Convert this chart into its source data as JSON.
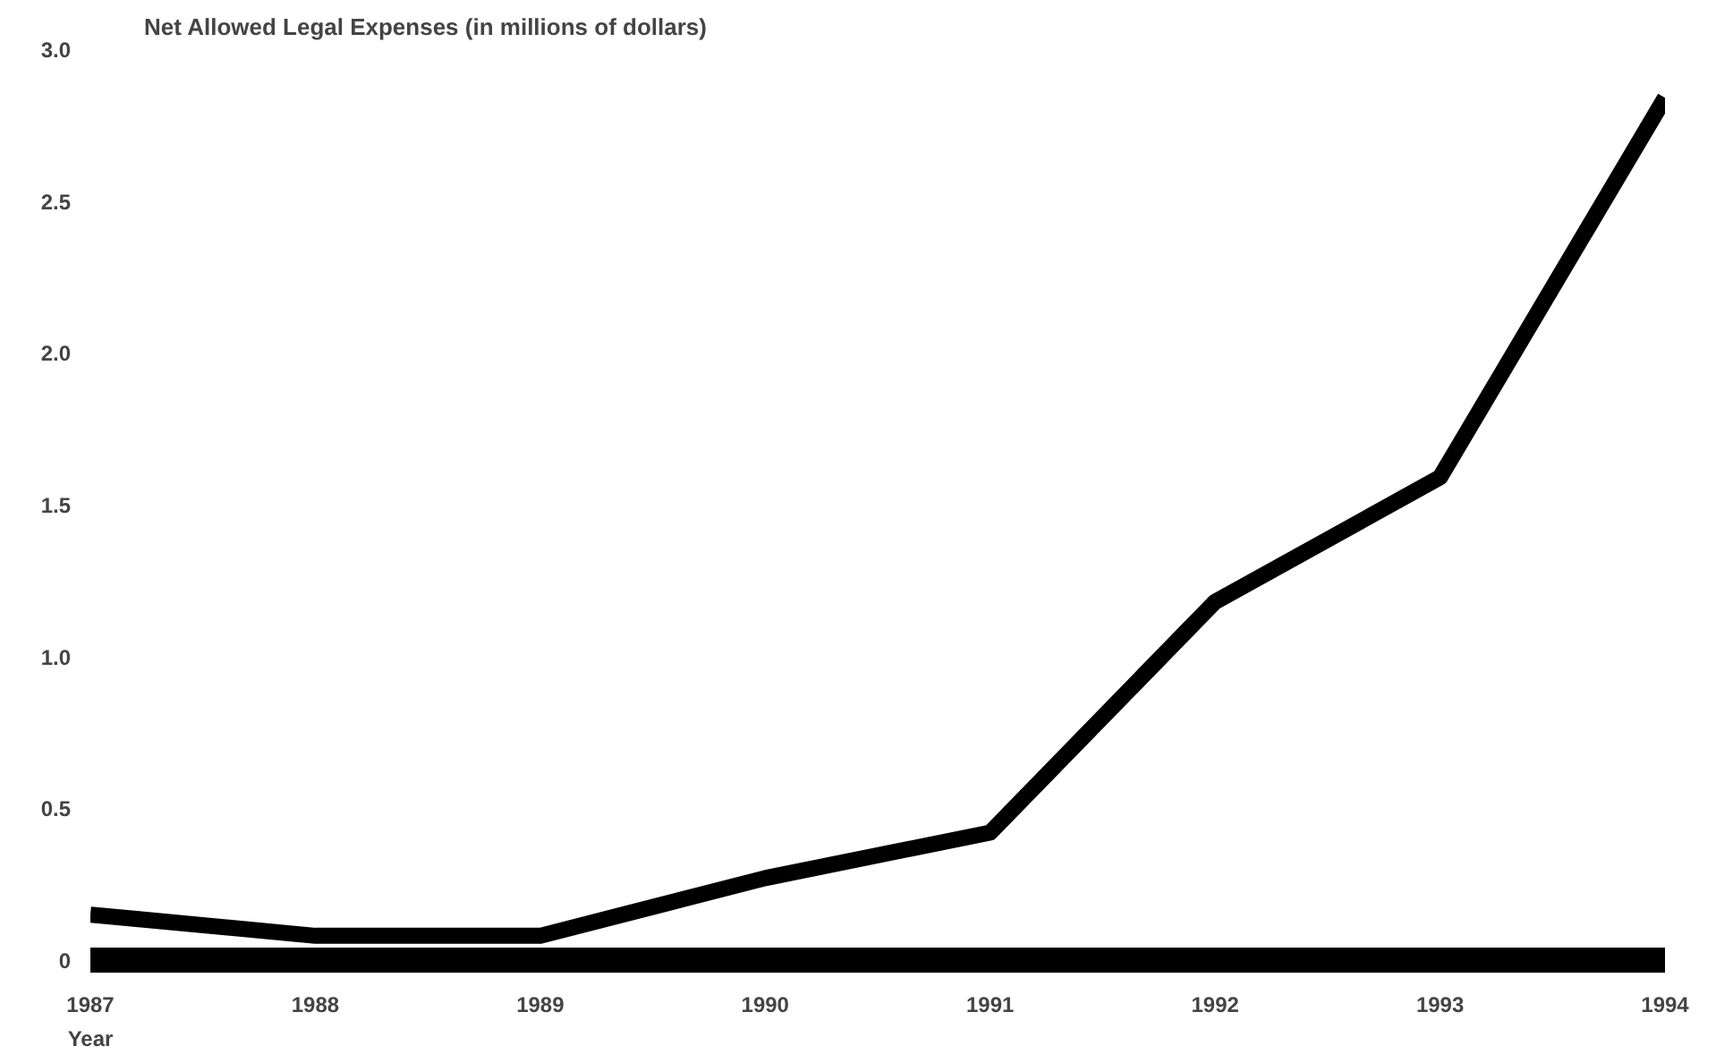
{
  "chart_data": {
    "type": "line",
    "title": "Net Allowed Legal Expenses (in millions of dollars)",
    "xlabel": "Year",
    "x": [
      1987,
      1988,
      1989,
      1990,
      1991,
      1992,
      1993,
      1994
    ],
    "series": [
      {
        "color": "#000000",
        "values": [
          0.15,
          0.08,
          0.08,
          0.27,
          0.42,
          1.18,
          1.59,
          2.84
        ]
      }
    ],
    "xlim": [
      1987,
      1994
    ],
    "xticks": [
      1987,
      1988,
      1989,
      1990,
      1991,
      1992,
      1993,
      1994
    ],
    "ylim": [
      0,
      3.0
    ],
    "yticks": [
      {
        "value": 0,
        "label": "0"
      },
      {
        "value": 0.5,
        "label": "0.5"
      },
      {
        "value": 1.0,
        "label": "1.0"
      },
      {
        "value": 1.5,
        "label": "1.5"
      },
      {
        "value": 2.0,
        "label": "2.0"
      },
      {
        "value": 2.5,
        "label": "2.5"
      },
      {
        "value": 3.0,
        "label": "3.0"
      }
    ],
    "grid": false,
    "marker": "none",
    "line_style": "solid"
  }
}
